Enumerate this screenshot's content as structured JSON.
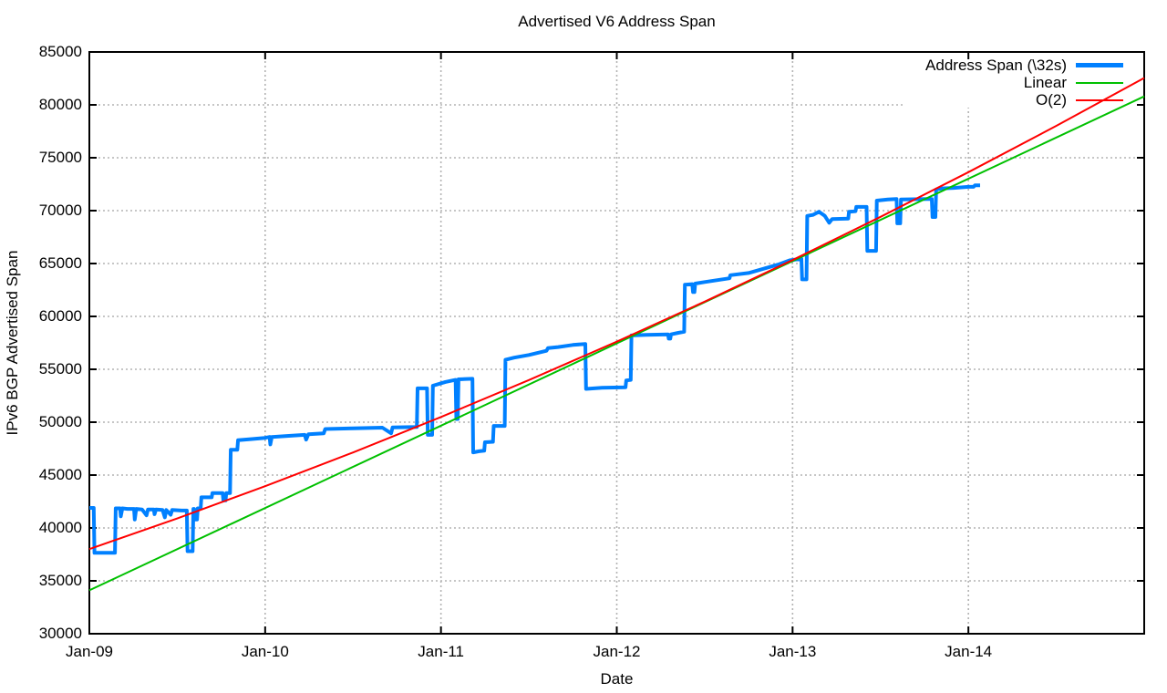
{
  "chart_data": {
    "type": "line",
    "title": "Advertised V6 Address Span",
    "xlabel": "Date",
    "ylabel": "IPv6 BGP Advertised Span",
    "x_unit": "months since Jan-2009",
    "xlim_months": [
      0,
      72
    ],
    "ylim": [
      30000,
      85000
    ],
    "y_ticks": [
      30000,
      35000,
      40000,
      45000,
      50000,
      55000,
      60000,
      65000,
      70000,
      75000,
      80000,
      85000
    ],
    "x_ticks": [
      {
        "label": "Jan-09",
        "month": 0
      },
      {
        "label": "Jan-10",
        "month": 12
      },
      {
        "label": "Jan-11",
        "month": 24
      },
      {
        "label": "Jan-12",
        "month": 36
      },
      {
        "label": "Jan-13",
        "month": 48
      },
      {
        "label": "Jan-14",
        "month": 60
      }
    ],
    "grid": true,
    "legend_position": "top-right",
    "colors": {
      "grid": "#b3b3b3",
      "border": "#000000",
      "background": "#ffffff"
    },
    "series": [
      {
        "name": "Address Span (\\32s)",
        "color": "#0080ff",
        "width": 4,
        "points": [
          [
            0,
            41900
          ],
          [
            0.3,
            41900
          ],
          [
            0.35,
            37650
          ],
          [
            1.75,
            37650
          ],
          [
            1.8,
            41850
          ],
          [
            2.1,
            41850
          ],
          [
            2.15,
            41100
          ],
          [
            2.25,
            41850
          ],
          [
            2.6,
            41800
          ],
          [
            3.05,
            41800
          ],
          [
            3.1,
            40800
          ],
          [
            3.2,
            41800
          ],
          [
            3.6,
            41750
          ],
          [
            3.9,
            41200
          ],
          [
            4.0,
            41750
          ],
          [
            4.4,
            41750
          ],
          [
            4.45,
            41300
          ],
          [
            4.55,
            41750
          ],
          [
            5.0,
            41700
          ],
          [
            5.15,
            41000
          ],
          [
            5.25,
            41700
          ],
          [
            5.55,
            41250
          ],
          [
            5.65,
            41700
          ],
          [
            6.3,
            41650
          ],
          [
            6.65,
            41650
          ],
          [
            6.7,
            37800
          ],
          [
            7.05,
            37800
          ],
          [
            7.1,
            41800
          ],
          [
            7.15,
            41800
          ],
          [
            7.2,
            40800
          ],
          [
            7.35,
            40800
          ],
          [
            7.4,
            41850
          ],
          [
            7.6,
            41850
          ],
          [
            7.65,
            42900
          ],
          [
            8.35,
            42900
          ],
          [
            8.4,
            43300
          ],
          [
            9.1,
            43300
          ],
          [
            9.15,
            42600
          ],
          [
            9.3,
            42600
          ],
          [
            9.35,
            43300
          ],
          [
            9.6,
            43300
          ],
          [
            9.65,
            47400
          ],
          [
            10.1,
            47400
          ],
          [
            10.15,
            48300
          ],
          [
            11,
            48400
          ],
          [
            12,
            48520
          ],
          [
            12.3,
            48600
          ],
          [
            12.35,
            47900
          ],
          [
            12.45,
            48600
          ],
          [
            13.5,
            48700
          ],
          [
            14.7,
            48800
          ],
          [
            14.8,
            48350
          ],
          [
            14.95,
            48850
          ],
          [
            16.0,
            48950
          ],
          [
            16.1,
            49350
          ],
          [
            18,
            49420
          ],
          [
            20,
            49480
          ],
          [
            20.6,
            48950
          ],
          [
            20.7,
            49500
          ],
          [
            22.35,
            49550
          ],
          [
            22.4,
            53200
          ],
          [
            23.05,
            53200
          ],
          [
            23.1,
            48800
          ],
          [
            23.4,
            48800
          ],
          [
            23.45,
            53450
          ],
          [
            24.3,
            53800
          ],
          [
            25.0,
            54000
          ],
          [
            25.05,
            50300
          ],
          [
            25.15,
            50300
          ],
          [
            25.2,
            54050
          ],
          [
            26.15,
            54100
          ],
          [
            26.2,
            47150
          ],
          [
            26.6,
            47250
          ],
          [
            26.95,
            47300
          ],
          [
            27.0,
            48100
          ],
          [
            27.55,
            48150
          ],
          [
            27.6,
            49650
          ],
          [
            28.35,
            49650
          ],
          [
            28.4,
            55900
          ],
          [
            29,
            56100
          ],
          [
            30,
            56350
          ],
          [
            31.2,
            56750
          ],
          [
            31.3,
            57000
          ],
          [
            32,
            57100
          ],
          [
            33,
            57300
          ],
          [
            33.85,
            57400
          ],
          [
            33.9,
            53150
          ],
          [
            35,
            53250
          ],
          [
            36.6,
            53300
          ],
          [
            36.65,
            53950
          ],
          [
            36.95,
            54000
          ],
          [
            37.0,
            58200
          ],
          [
            38,
            58250
          ],
          [
            39.5,
            58300
          ],
          [
            39.55,
            57900
          ],
          [
            39.65,
            57900
          ],
          [
            39.7,
            58300
          ],
          [
            40.2,
            58450
          ],
          [
            40.6,
            58550
          ],
          [
            40.65,
            63000
          ],
          [
            41.15,
            63050
          ],
          [
            41.2,
            62300
          ],
          [
            41.3,
            62300
          ],
          [
            41.35,
            63100
          ],
          [
            42,
            63250
          ],
          [
            43.7,
            63600
          ],
          [
            43.75,
            63900
          ],
          [
            45,
            64100
          ],
          [
            46,
            64500
          ],
          [
            47,
            64900
          ],
          [
            47.8,
            65300
          ],
          [
            48.6,
            65450
          ],
          [
            48.65,
            63500
          ],
          [
            48.95,
            63500
          ],
          [
            49.0,
            69500
          ],
          [
            49.4,
            69600
          ],
          [
            49.8,
            69900
          ],
          [
            50.2,
            69500
          ],
          [
            50.5,
            68850
          ],
          [
            50.7,
            69200
          ],
          [
            51.8,
            69250
          ],
          [
            51.85,
            69900
          ],
          [
            52.3,
            69950
          ],
          [
            52.35,
            70350
          ],
          [
            53.05,
            70350
          ],
          [
            53.1,
            66200
          ],
          [
            53.7,
            66200
          ],
          [
            53.75,
            70950
          ],
          [
            54.5,
            71050
          ],
          [
            55.1,
            71100
          ],
          [
            55.15,
            68800
          ],
          [
            55.35,
            68800
          ],
          [
            55.4,
            71050
          ],
          [
            57.5,
            71100
          ],
          [
            57.55,
            69400
          ],
          [
            57.75,
            69400
          ],
          [
            57.8,
            72000
          ],
          [
            58.2,
            72100
          ],
          [
            59,
            72150
          ],
          [
            60,
            72250
          ],
          [
            60.35,
            72250
          ],
          [
            60.45,
            72400
          ],
          [
            60.8,
            72400
          ]
        ]
      },
      {
        "name": "Linear",
        "color": "#00c000",
        "width": 2,
        "points": [
          [
            0,
            34100
          ],
          [
            72,
            80800
          ]
        ]
      },
      {
        "name": "O(2)",
        "color": "#ff0000",
        "width": 2,
        "points": [
          [
            0,
            38000
          ],
          [
            6,
            40900
          ],
          [
            12,
            43950
          ],
          [
            18,
            47140
          ],
          [
            24,
            50490
          ],
          [
            30,
            53980
          ],
          [
            36,
            57610
          ],
          [
            42,
            61400
          ],
          [
            48,
            65330
          ],
          [
            54,
            69410
          ],
          [
            60,
            73640
          ],
          [
            66,
            78020
          ],
          [
            72,
            82540
          ]
        ]
      }
    ]
  }
}
